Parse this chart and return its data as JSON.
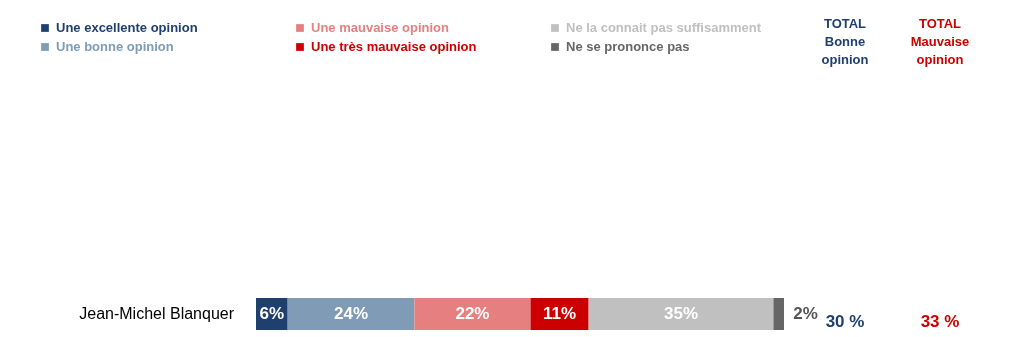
{
  "chart_data": {
    "type": "bar",
    "orientation": "horizontal",
    "stacked": true,
    "legend": "top",
    "categories": [
      "Jean-Michel Blanquer"
    ],
    "series": [
      {
        "name": "Une excellente opinion",
        "color": "#1f3f6e",
        "values": [
          6
        ],
        "value_labels": [
          "6%"
        ]
      },
      {
        "name": "Une bonne opinion",
        "color": "#7f9bb5",
        "values": [
          24
        ],
        "value_labels": [
          "24%"
        ]
      },
      {
        "name": "Une mauvaise opinion",
        "color": "#e68080",
        "values": [
          22
        ],
        "value_labels": [
          "22%"
        ]
      },
      {
        "name": "Une très mauvaise opinion",
        "color": "#cc0000",
        "values": [
          11
        ],
        "value_labels": [
          "11%"
        ]
      },
      {
        "name": "Ne la connait pas suffisamment",
        "color": "#c0c0c0",
        "values": [
          35
        ],
        "value_labels": [
          "35%"
        ]
      },
      {
        "name": "Ne se prononce pas",
        "color": "#666666",
        "values": [
          2
        ],
        "value_labels": [
          "2%"
        ]
      }
    ],
    "annotations": [
      "TOTAL Bonne opinion",
      "30 %",
      "TOTAL Mauvaise opinion",
      "33 %"
    ]
  }
}
